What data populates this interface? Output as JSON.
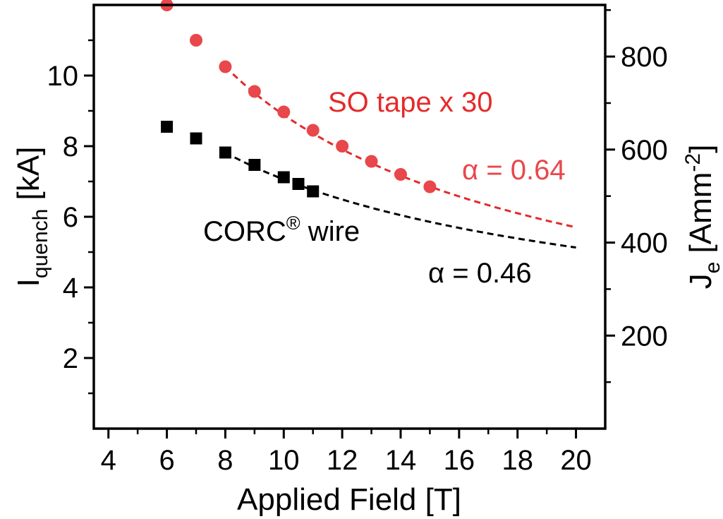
{
  "chart_data": {
    "type": "scatter",
    "xlabel": "Applied Field [T]",
    "ylabel": {
      "main": "I",
      "sub": "quench",
      "unit": " [kA]"
    },
    "y2label": {
      "main": "J",
      "sub": "e",
      "unit_open": " [Amm",
      "sup": "-2",
      "unit_close": "]"
    },
    "xlim": [
      3.5,
      21
    ],
    "ylim": [
      0,
      12
    ],
    "y2lim": [
      0,
      911
    ],
    "xticks": [
      4,
      6,
      8,
      10,
      12,
      14,
      16,
      18,
      20
    ],
    "yticks": [
      2,
      4,
      6,
      8,
      10
    ],
    "y2ticks": [
      200,
      400,
      600,
      800
    ],
    "grid": false,
    "series": [
      {
        "name": "SO tape x 30",
        "color": "#e8474b",
        "marker": "circle",
        "x": [
          6,
          7,
          8,
          9,
          10,
          11,
          12,
          13,
          14,
          15
        ],
        "y": [
          12.0,
          11.0,
          10.25,
          9.55,
          8.97,
          8.45,
          8.0,
          7.57,
          7.2,
          6.85
        ],
        "fit": {
          "alpha_label": "α = 0.64",
          "color": "#e52a2a",
          "x": [
            8,
            20
          ],
          "y_at_8": 10.25,
          "exponent": 0.64
        }
      },
      {
        "name": "CORC® wire",
        "color": "#000000",
        "marker": "square",
        "x": [
          6,
          7,
          8,
          9,
          10,
          10.5,
          11
        ],
        "y": [
          8.55,
          8.22,
          7.82,
          7.47,
          7.12,
          6.93,
          6.72
        ],
        "fit": {
          "alpha_label": "α = 0.46",
          "color": "#000000",
          "x": [
            8,
            20
          ],
          "y_at_8": 7.82,
          "exponent": 0.46
        }
      }
    ],
    "annotations": {
      "so_tape": "SO tape x 30",
      "so_alpha": "α = 0.64",
      "corc_main": "CORC",
      "corc_sup": "®",
      "corc_rest": " wire",
      "corc_alpha": "α = 0.46"
    }
  }
}
